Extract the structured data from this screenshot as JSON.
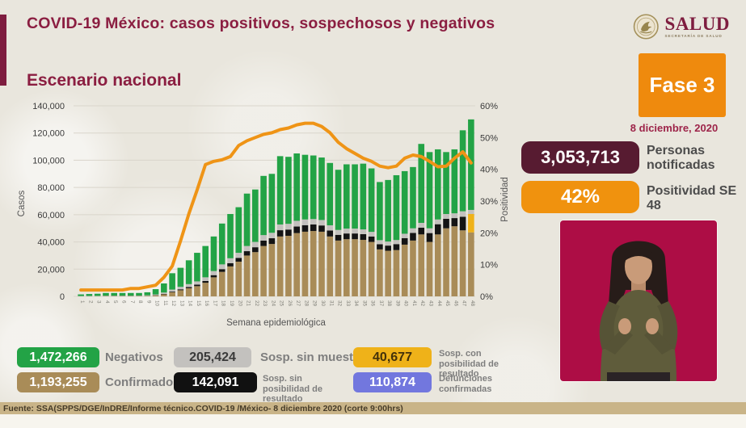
{
  "header": {
    "title": "COVID-19 México: casos positivos, sospechosos y negativos",
    "logo": {
      "name": "SALUD",
      "subtitle": "SECRETARÍA DE SALUD"
    }
  },
  "right_panel": {
    "phase_badge": "Fase 3",
    "date": "8 diciembre, 2020",
    "stats": [
      {
        "value": "3,053,713",
        "label": "Personas notificadas",
        "color": "#571b31",
        "text_color": "#ffffff"
      },
      {
        "value": "42%",
        "label": "Positividad SE 48",
        "color": "#f0920e",
        "text_color": "#ffffff"
      }
    ],
    "interpreter": "sign-language-interpreter",
    "video_bg_color": "#ad0d45"
  },
  "legend": {
    "items": [
      {
        "value": "1,472,266",
        "label": "Negativos",
        "color": "#23a346",
        "text_color": "#ffffff"
      },
      {
        "value": "205,424",
        "label": "Sosp. sin muestra",
        "color": "#c3c1be",
        "text_color": "#3a3a3a"
      },
      {
        "value": "40,677",
        "label": "Sosp. con posibilidad de resultado",
        "color": "#efb219",
        "text_color": "#43310a"
      },
      {
        "value": "1,193,255",
        "label": "Confirmados",
        "color": "#a98c58",
        "text_color": "#ffffff"
      },
      {
        "value": "142,091",
        "label": "Sosp. sin posibilidad de resultado",
        "color": "#111111",
        "text_color": "#ffffff"
      },
      {
        "value": "110,874",
        "label": "Defunciones confirmadas",
        "color": "#7277de",
        "text_color": "#ffffff"
      }
    ]
  },
  "footer": "Fuente: SSA(SPPS/DGE/InDRE/Informe técnico.COVID-19 /México- 8 diciembre 2020 (corte 9:00hrs)",
  "chart_data": {
    "type": "bar-line-combo",
    "title": "Escenario nacional",
    "xlabel": "Semana epidemiológica",
    "ylabel_left": "Casos",
    "ylabel_right": "Positividad",
    "ylim_left": [
      0,
      140000
    ],
    "ylim_right_pct": [
      0,
      60
    ],
    "yticks_left": [
      "0",
      "20,000",
      "40,000",
      "60,000",
      "80,000",
      "100,000",
      "120,000",
      "140,000"
    ],
    "yticks_right": [
      "0%",
      "10%",
      "20%",
      "30%",
      "40%",
      "50%",
      "60%"
    ],
    "grid": true,
    "x": [
      1,
      2,
      3,
      4,
      5,
      6,
      7,
      8,
      9,
      10,
      11,
      12,
      13,
      14,
      15,
      16,
      17,
      18,
      19,
      20,
      21,
      22,
      23,
      24,
      25,
      26,
      27,
      28,
      29,
      30,
      31,
      32,
      33,
      34,
      35,
      36,
      37,
      38,
      39,
      40,
      41,
      42,
      43,
      44,
      45,
      46,
      47,
      48
    ],
    "stack_order_note": "bottom-to-top: Confirmados, Sosp. sin posibilidad, Sosp. con posibilidad, Sosp. sin muestra, Negativos",
    "series": [
      {
        "name": "Confirmados",
        "color": "#a98c58",
        "values": [
          100,
          120,
          150,
          200,
          200,
          200,
          220,
          250,
          300,
          600,
          1500,
          3000,
          4500,
          6000,
          7500,
          10000,
          14000,
          18000,
          22000,
          25500,
          30000,
          32500,
          37000,
          38500,
          44000,
          44500,
          46500,
          47500,
          48000,
          47500,
          44000,
          41000,
          42000,
          42000,
          41500,
          40000,
          34500,
          33500,
          34000,
          38000,
          41000,
          45500,
          40000,
          45500,
          50000,
          51500,
          48500,
          47000
        ]
      },
      {
        "name": "Sosp. sin posibilidad de resultado",
        "color": "#141414",
        "values": [
          50,
          50,
          50,
          60,
          60,
          60,
          60,
          70,
          100,
          200,
          300,
          500,
          700,
          900,
          1100,
          1300,
          1600,
          2000,
          2400,
          2800,
          3200,
          3600,
          4000,
          4200,
          4600,
          4600,
          4800,
          4800,
          4800,
          4600,
          4400,
          4200,
          4200,
          4200,
          4200,
          4000,
          3800,
          3800,
          4400,
          4800,
          5600,
          5000,
          6500,
          7500,
          7000,
          6000,
          10000,
          0
        ]
      },
      {
        "name": "Sosp. con posibilidad de resultado",
        "color": "#efb219",
        "values": [
          0,
          0,
          0,
          0,
          0,
          0,
          0,
          0,
          0,
          0,
          0,
          0,
          0,
          0,
          0,
          0,
          0,
          0,
          0,
          0,
          0,
          0,
          0,
          0,
          0,
          0,
          0,
          0,
          0,
          0,
          0,
          0,
          0,
          0,
          0,
          0,
          0,
          0,
          0,
          0,
          0,
          0,
          0,
          0,
          0,
          0,
          0,
          13500
        ]
      },
      {
        "name": "Sosp. sin muestra",
        "color": "#c3c1be",
        "values": [
          150,
          180,
          200,
          240,
          240,
          240,
          220,
          280,
          400,
          600,
          1000,
          1500,
          1800,
          2100,
          2400,
          2700,
          3000,
          3500,
          3600,
          3700,
          3800,
          3900,
          4000,
          4000,
          4200,
          4200,
          4200,
          4200,
          4000,
          4000,
          3800,
          3600,
          3600,
          3600,
          3500,
          3400,
          3000,
          3000,
          3000,
          3200,
          3400,
          3500,
          3500,
          3500,
          3500,
          3500,
          4000,
          3000
        ]
      },
      {
        "name": "Negativos",
        "color": "#23a346",
        "values": [
          1200,
          1450,
          1600,
          2000,
          2000,
          2000,
          2000,
          1900,
          2200,
          3900,
          6700,
          12000,
          14000,
          17500,
          21000,
          23000,
          25400,
          30000,
          32500,
          33500,
          38500,
          38500,
          43500,
          43300,
          50200,
          49200,
          49500,
          47500,
          46700,
          45900,
          45800,
          44200,
          47200,
          47200,
          48300,
          46600,
          42700,
          45200,
          47600,
          46000,
          45000,
          58000,
          56000,
          51500,
          45500,
          47000,
          59500,
          66500
        ]
      }
    ],
    "line": {
      "name": "Positividad",
      "color": "#ef9416",
      "values": [
        2,
        2,
        2,
        2,
        2,
        2,
        2.5,
        2.5,
        3,
        3.5,
        6,
        9.5,
        17.5,
        26,
        33.5,
        41.5,
        42.5,
        43,
        44,
        47.5,
        49,
        50,
        51,
        51.5,
        52.5,
        53,
        54,
        54.5,
        54.5,
        53.5,
        51.5,
        48.5,
        46.5,
        45,
        43.5,
        42.5,
        41,
        40.5,
        41,
        43.5,
        44.5,
        44,
        42.5,
        40.8,
        41,
        43.5,
        45.5,
        42
      ]
    }
  }
}
